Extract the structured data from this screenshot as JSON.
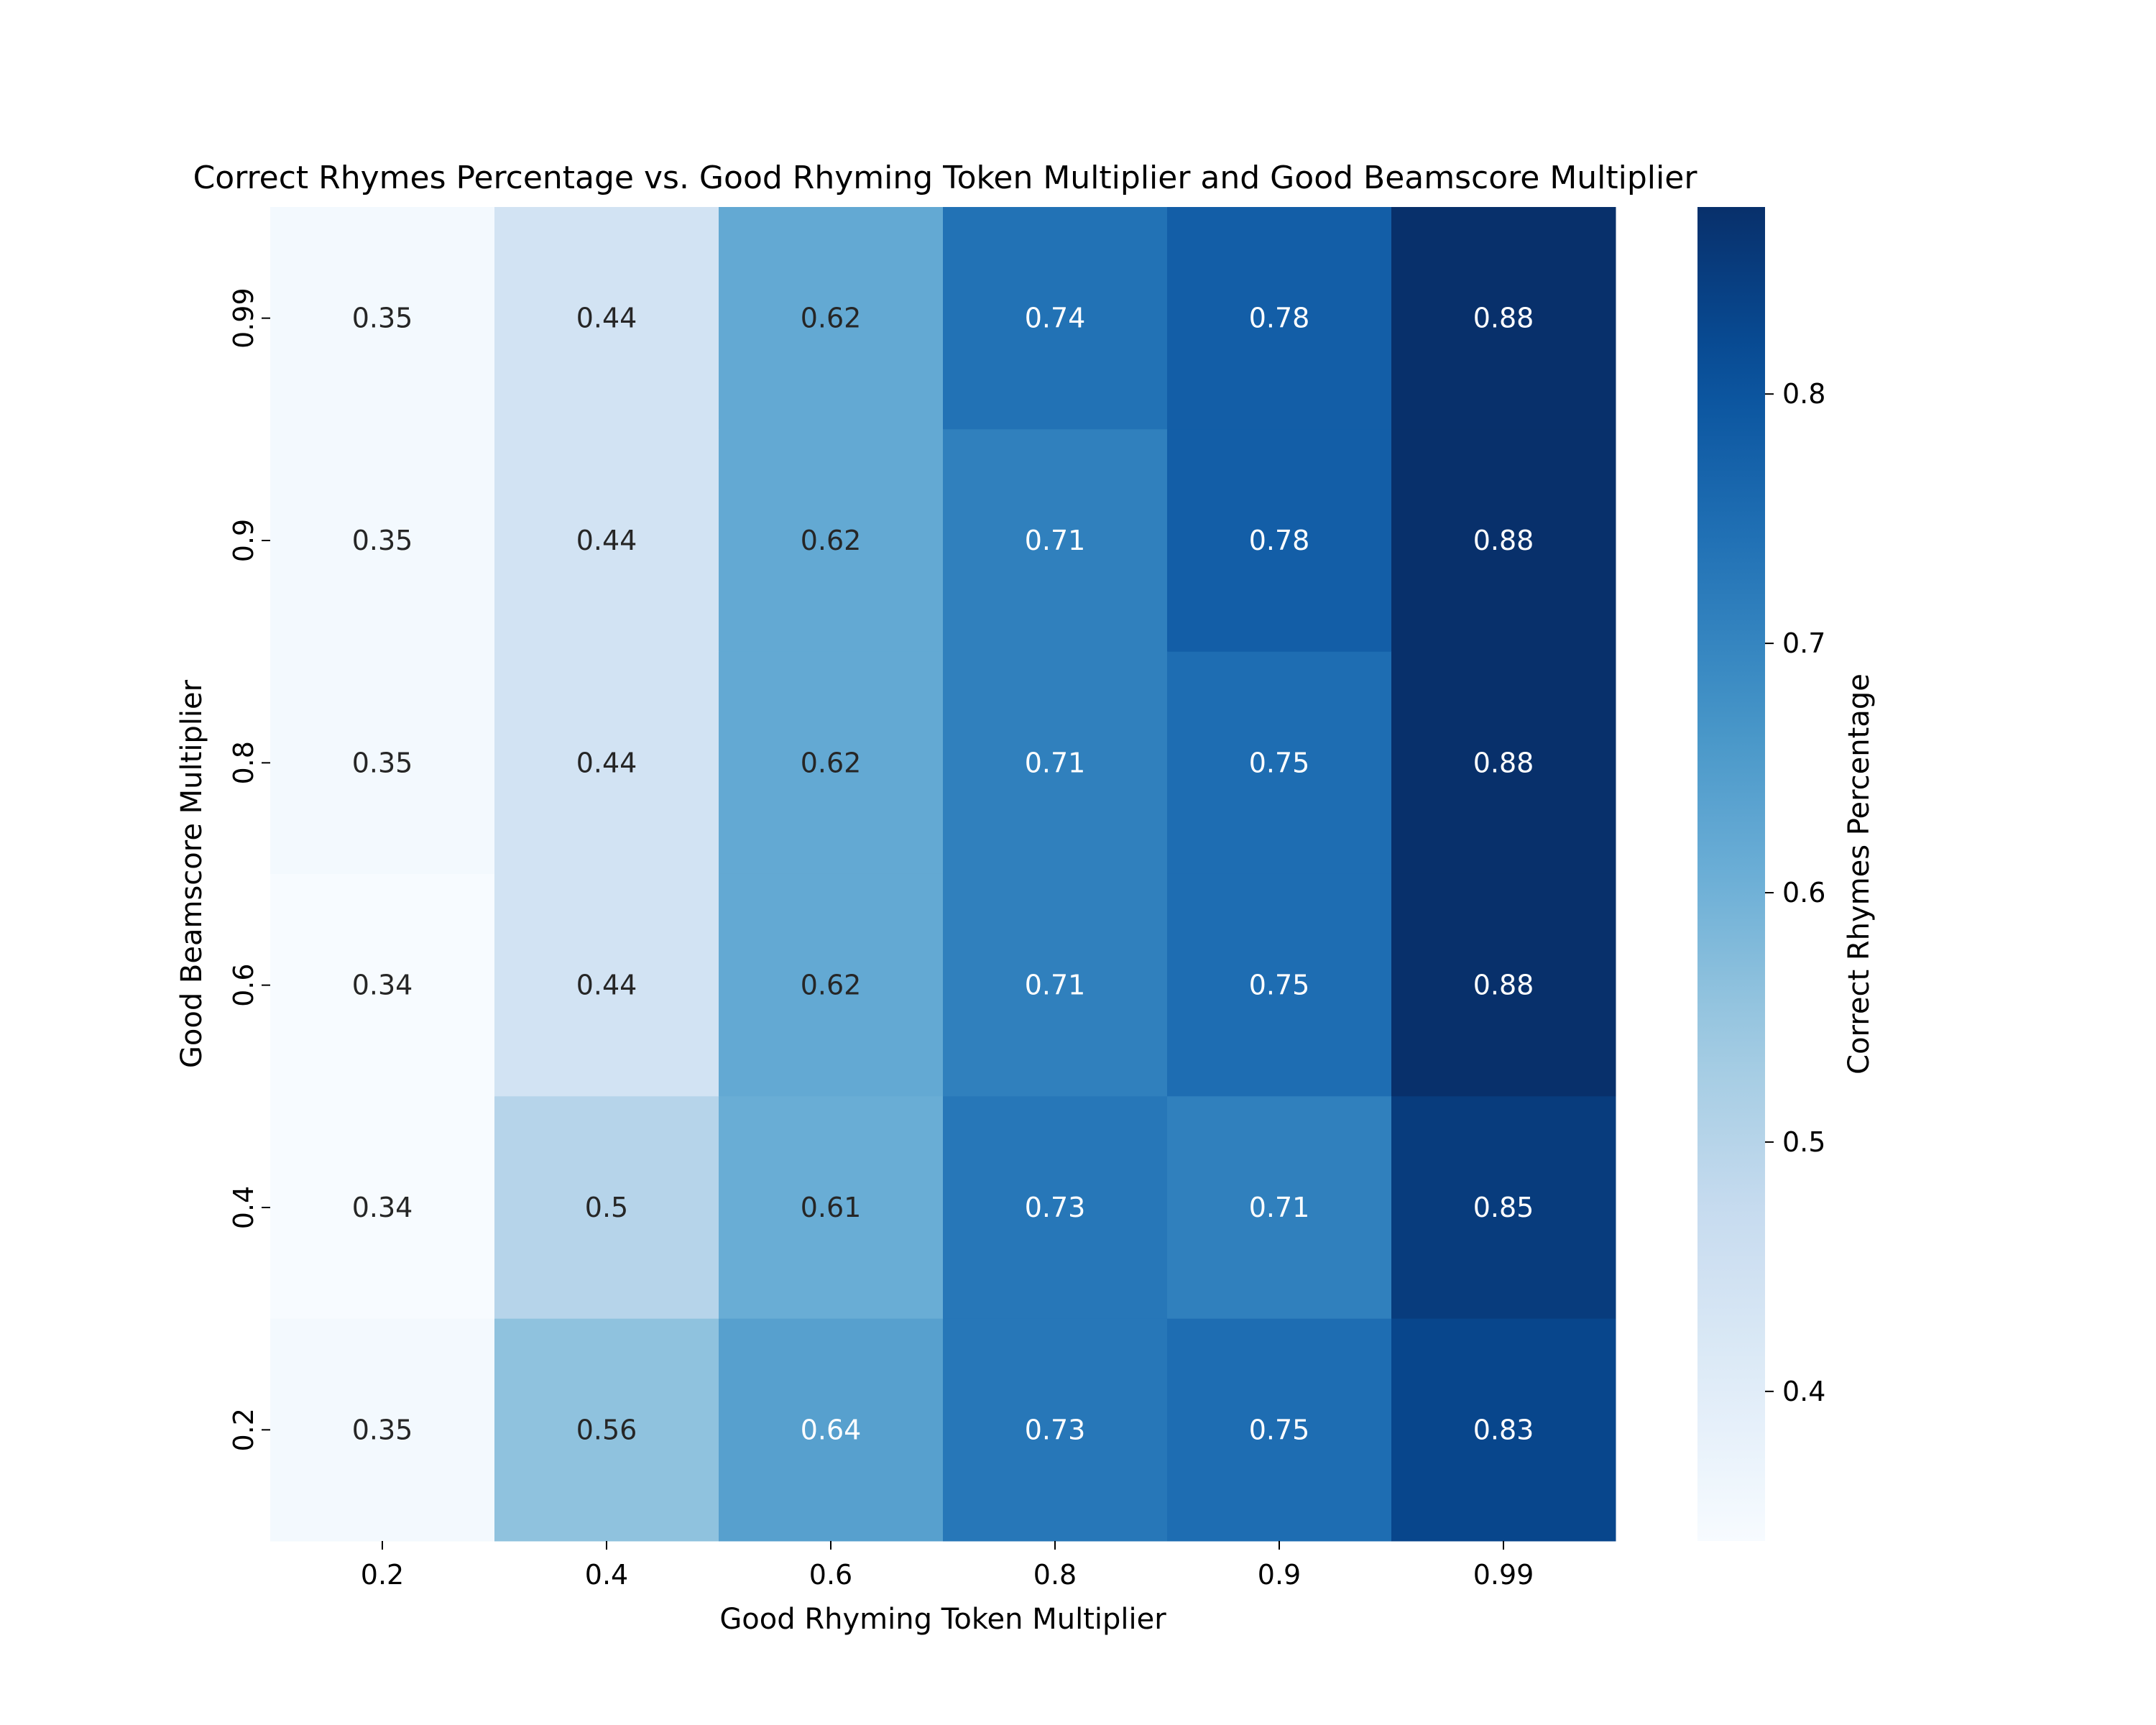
{
  "chart_data": {
    "type": "heatmap",
    "title": "Correct Rhymes Percentage vs. Good Rhyming Token Multiplier and Good Beamscore Multiplier",
    "xlabel": "Good Rhyming Token Multiplier",
    "ylabel": "Good Beamscore Multiplier",
    "colorbar_label": "Correct Rhymes Percentage",
    "colormap": "Blues",
    "x_categories": [
      "0.2",
      "0.4",
      "0.6",
      "0.8",
      "0.9",
      "0.99"
    ],
    "y_categories": [
      "0.99",
      "0.9",
      "0.8",
      "0.6",
      "0.4",
      "0.2"
    ],
    "values": [
      [
        0.35,
        0.44,
        0.62,
        0.74,
        0.78,
        0.88
      ],
      [
        0.35,
        0.44,
        0.62,
        0.71,
        0.78,
        0.88
      ],
      [
        0.35,
        0.44,
        0.62,
        0.71,
        0.75,
        0.88
      ],
      [
        0.34,
        0.44,
        0.62,
        0.71,
        0.75,
        0.88
      ],
      [
        0.34,
        0.5,
        0.61,
        0.73,
        0.71,
        0.85
      ],
      [
        0.35,
        0.56,
        0.64,
        0.73,
        0.75,
        0.83
      ]
    ],
    "value_labels": [
      [
        "0.35",
        "0.44",
        "0.62",
        "0.74",
        "0.78",
        "0.88"
      ],
      [
        "0.35",
        "0.44",
        "0.62",
        "0.71",
        "0.78",
        "0.88"
      ],
      [
        "0.35",
        "0.44",
        "0.62",
        "0.71",
        "0.75",
        "0.88"
      ],
      [
        "0.34",
        "0.44",
        "0.62",
        "0.71",
        "0.75",
        "0.88"
      ],
      [
        "0.34",
        "0.5",
        "0.61",
        "0.73",
        "0.71",
        "0.85"
      ],
      [
        "0.35",
        "0.56",
        "0.64",
        "0.73",
        "0.75",
        "0.83"
      ]
    ],
    "colorbar_range": [
      0.34,
      0.875
    ],
    "colorbar_ticks": [
      "0.4",
      "0.5",
      "0.6",
      "0.7",
      "0.8"
    ],
    "grid": false
  }
}
